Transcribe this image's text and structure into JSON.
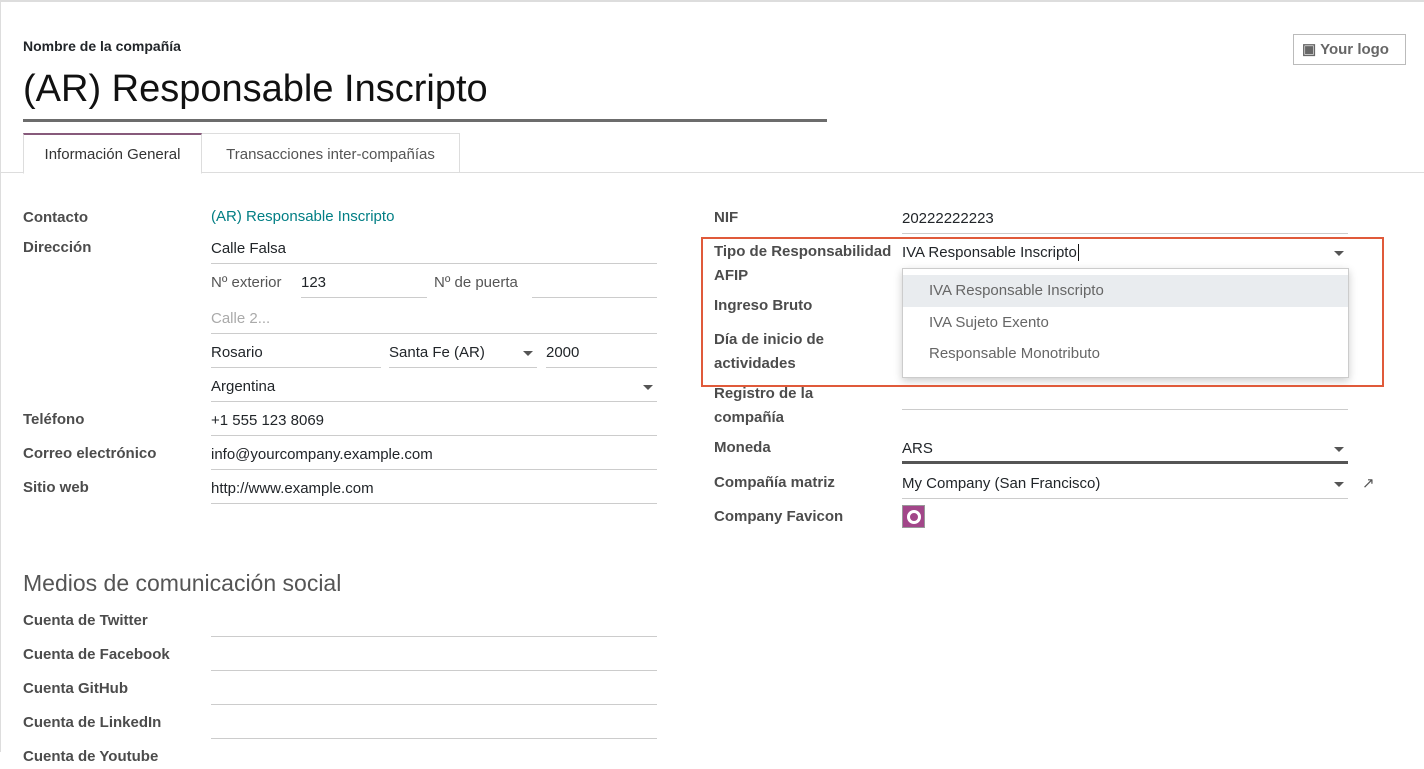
{
  "header": {
    "name_label": "Nombre de la compañía",
    "name_value": "(AR) Responsable Inscripto",
    "logo_button": "Your logo"
  },
  "tabs": [
    {
      "label": "Información General",
      "active": true
    },
    {
      "label": "Transacciones inter-compañías",
      "active": false
    }
  ],
  "left": {
    "contacto": {
      "label": "Contacto",
      "value": "(AR) Responsable Inscripto"
    },
    "direccion": {
      "label": "Dirección",
      "street": "Calle Falsa",
      "ext_label": "Nº exterior",
      "ext_value": "123",
      "door_label": "Nº de puerta",
      "door_value": "",
      "street2_placeholder": "Calle 2...",
      "city": "Rosario",
      "state": "Santa Fe (AR)",
      "zip": "2000",
      "country": "Argentina"
    },
    "telefono": {
      "label": "Teléfono",
      "value": "+1 555 123 8069"
    },
    "correo": {
      "label": "Correo electrónico",
      "value": "info@yourcompany.example.com"
    },
    "web": {
      "label": "Sitio web",
      "value": "http://www.example.com"
    }
  },
  "social": {
    "title": "Medios de comunicación social",
    "items": [
      {
        "label": "Cuenta de Twitter",
        "value": ""
      },
      {
        "label": "Cuenta de Facebook",
        "value": ""
      },
      {
        "label": "Cuenta GitHub",
        "value": ""
      },
      {
        "label": "Cuenta de LinkedIn",
        "value": ""
      },
      {
        "label": "Cuenta de Youtube",
        "value": ""
      }
    ]
  },
  "right": {
    "nif": {
      "label": "NIF",
      "value": "20222222223"
    },
    "afip": {
      "label": "Tipo de Responsabilidad AFIP",
      "value": "IVA Responsable Inscripto",
      "options": [
        "IVA Responsable Inscripto",
        "IVA Sujeto Exento",
        "Responsable Monotributo"
      ],
      "highlighted": 0
    },
    "ingreso": {
      "label": "Ingreso Bruto"
    },
    "inicio": {
      "label": "Día de inicio de actividades"
    },
    "registro": {
      "label": "Registro de la compañía"
    },
    "moneda": {
      "label": "Moneda",
      "value": "ARS"
    },
    "matriz": {
      "label": "Compañía matriz",
      "value": "My Company (San Francisco)"
    },
    "favicon": {
      "label": "Company Favicon"
    }
  },
  "colors": {
    "highlight_box": "#e05a3a",
    "link": "#017e84",
    "tab_active": "#875a7b",
    "favicon": "#a24689"
  }
}
